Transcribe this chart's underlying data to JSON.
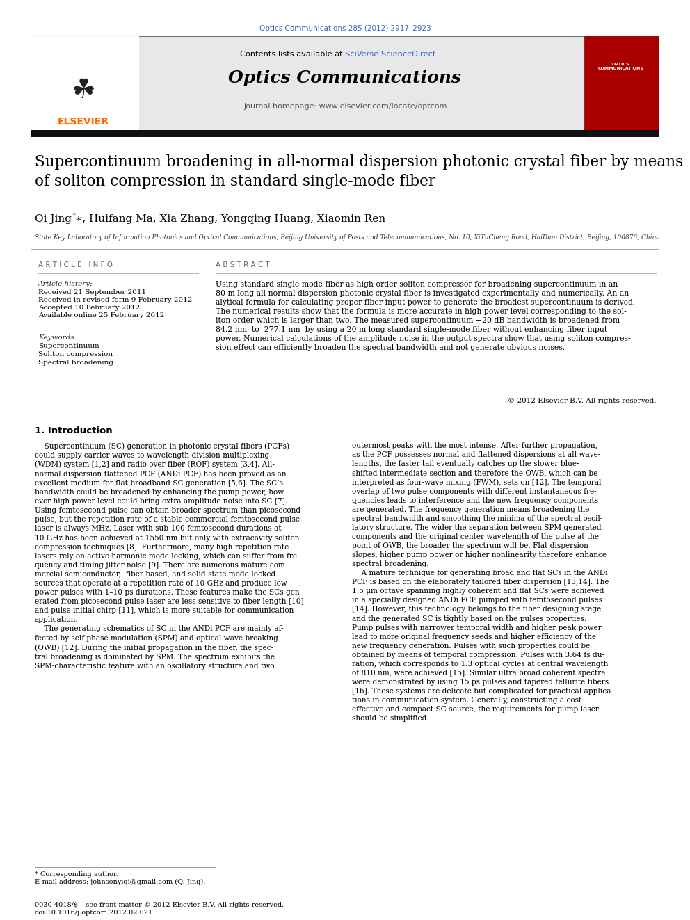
{
  "page_width": 9.92,
  "page_height": 13.23,
  "bg_color": "#ffffff",
  "top_citation": "Optics Communications 285 (2012) 2917–2923",
  "top_citation_color": "#3366cc",
  "header_bg": "#e8e8e8",
  "contents_text": "Contents lists available at ",
  "sciverse_text": "SciVerse ScienceDirect",
  "sciverse_color": "#3366cc",
  "journal_name": "Optics Communications",
  "journal_homepage": "journal homepage: www.elsevier.com/locate/optcom",
  "title_text": "Supercontinuum broadening in all-normal dispersion photonic crystal fiber by means\nof soliton compression in standard single-mode fiber",
  "authors_text": "Qi Jing ∗, Huifang Ma, Xia Zhang, Yongqing Huang, Xiaomin Ren",
  "affiliation_text": "State Key Laboratory of Information Photonics and Optical Communications, Beijing University of Posts and Telecommunications, No. 10, XiTuCheng Road, HaiDian District, Beijing, 100876, China",
  "article_info_label": "A R T I C L E   I N F O",
  "abstract_label": "A B S T R A C T",
  "article_history_label": "Article history:",
  "received_1": "Received 21 September 2011",
  "received_2": "Received in revised form 9 February 2012",
  "accepted": "Accepted 10 February 2012",
  "available": "Available online 25 February 2012",
  "keywords_label": "Keywords:",
  "keyword1": "Supercontinuum",
  "keyword2": "Soliton compression",
  "keyword3": "Spectral broadening",
  "abstract_text": "Using standard single-mode fiber as high-order soliton compressor for broadening supercontinuum in an\n80 m long all-normal dispersion photonic crystal fiber is investigated experimentally and numerically. An an-\nalytical formula for calculating proper fiber input power to generate the broadest supercontinuum is derived.\nThe numerical results show that the formula is more accurate in high power level corresponding to the sol-\niton order which is larger than two. The measured supercontinuum −20 dB bandwidth is broadened from\n84.2 nm  to  277.1 nm  by using a 20 m long standard single-mode fiber without enhancing fiber input\npower. Numerical calculations of the amplitude noise in the output spectra show that using soliton compres-\nsion effect can efficiently broaden the spectral bandwidth and not generate obvious noises.",
  "copyright_text": "© 2012 Elsevier B.V. All rights reserved.",
  "intro_heading": "1. Introduction",
  "intro_left_text": "    Supercontinuum (SC) generation in photonic crystal fibers (PCFs)\ncould supply carrier waves to wavelength-division-multiplexing\n(WDM) system [1,2] and radio over fiber (ROF) system [3,4]. All-\nnormal dispersion-flattened PCF (ANDi PCF) has been proved as an\nexcellent medium for flat broadband SC generation [5,6]. The SC’s\nbandwidth could be broadened by enhancing the pump power, how-\never high power level could bring extra amplitude noise into SC [7].\nUsing femtosecond pulse can obtain broader spectrum than picosecond\npulse, but the repetition rate of a stable commercial femtosecond-pulse\nlaser is always MHz. Laser with sub-100 femtosecond durations at\n10 GHz has been achieved at 1550 nm but only with extracavity soliton\ncompression techniques [8]. Furthermore, many high-repetition-rate\nlasers rely on active harmonic mode locking, which can suffer from fre-\nquency and timing jitter noise [9]. There are numerous mature com-\nmercial semiconductor,  fiber-based, and solid-state mode-locked\nsources that operate at a repetition rate of 10 GHz and produce low-\npower pulses with 1–10 ps durations. These features make the SCs gen-\nerated from picosecond pulse laser are less sensitive to fiber length [10]\nand pulse initial chirp [11], which is more suitable for communication\napplication.\n    The generating schematics of SC in the ANDi PCF are mainly af-\nfected by self-phase modulation (SPM) and optical wave breaking\n(OWB) [12]. During the initial propagation in the fiber, the spec-\ntral broadening is dominated by SPM. The spectrum exhibits the\nSPM-characteristic feature with an oscillatory structure and two",
  "intro_right_text": "outermost peaks with the most intense. After further propagation,\nas the PCF possesses normal and flattened dispersions at all wave-\nlengths, the faster tail eventually catches up the slower blue-\nshifted intermediate section and therefore the OWB, which can be\ninterpreted as four-wave mixing (FWM), sets on [12]. The temporal\noverlap of two pulse components with different instantaneous fre-\nquencies leads to interference and the new frequency components\nare generated. The frequency generation means broadening the\nspectral bandwidth and smoothing the minima of the spectral oscil-\nlatory structure. The wider the separation between SPM generated\ncomponents and the original center wavelength of the pulse at the\npoint of OWB, the broader the spectrum will be. Flat dispersion\nslopes, higher pump power or higher nonlinearity therefore enhance\nspectral broadening.\n    A mature technique for generating broad and flat SCs in the ANDi\nPCF is based on the elaborately tailored fiber dispersion [13,14]. The\n1.5 μm octave spanning highly coherent and flat SCs were achieved\nin a specially designed ANDi PCF pumped with femtosecond pulses\n[14]. However, this technology belongs to the fiber designing stage\nand the generated SC is tightly based on the pulses properties.\nPump pulses with narrower temporal width and higher peak power\nlead to more original frequency seeds and higher efficiency of the\nnew frequency generation. Pulses with such properties could be\nobtained by means of temporal compression. Pulses with 3.64 fs du-\nration, which corresponds to 1.3 optical cycles at central wavelength\nof 810 nm, were achieved [15]. Similar ultra broad coherent spectra\nwere demonstrated by using 15 ps pulses and tapered tellurite fibers\n[16]. These systems are delicate but complicated for practical applica-\ntions in communication system. Generally, constructing a cost-\neffective and compact SC source, the requirements for pump laser\nshould be simplified.",
  "footnote_star": "* Corresponding author.",
  "footnote_email": "E-mail address: johnsonyiqi@gmail.com (Q. Jing).",
  "bottom_issn": "0030-4018/$ – see front matter © 2012 Elsevier B.V. All rights reserved.",
  "bottom_doi": "doi:10.1016/j.optcom.2012.02.021"
}
